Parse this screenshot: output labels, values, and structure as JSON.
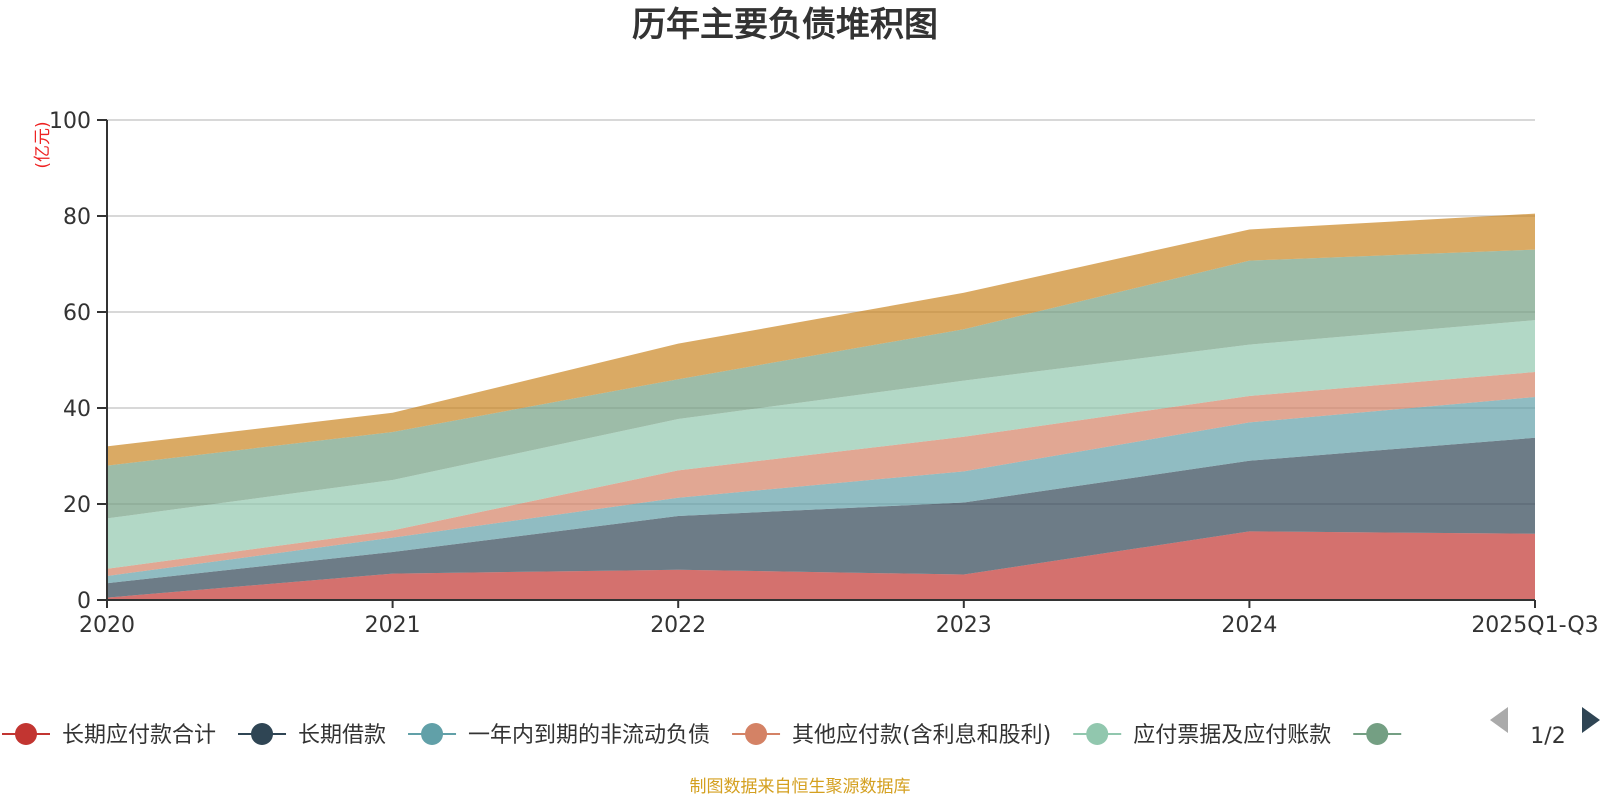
{
  "chart_data": {
    "type": "area",
    "stacked": true,
    "title": "历年主要负债堆积图",
    "ylabel": "(亿元)",
    "xlabel": "",
    "ylim": [
      0,
      100
    ],
    "yticks": [
      0,
      20,
      40,
      60,
      80,
      100
    ],
    "grid": true,
    "categories": [
      "2020",
      "2021",
      "2022",
      "2023",
      "2024",
      "2025Q1-Q3"
    ],
    "series": [
      {
        "name": "长期应付款合计",
        "color": "#c23531",
        "values": [
          0.5,
          5.5,
          6.3,
          5.3,
          14.3,
          13.8
        ]
      },
      {
        "name": "长期借款",
        "color": "#2f4554",
        "values": [
          3.0,
          4.5,
          11.2,
          15.0,
          14.7,
          20.0
        ]
      },
      {
        "name": "一年内到期的非流动负债",
        "color": "#61a0a8",
        "values": [
          1.5,
          3.0,
          3.8,
          6.5,
          8.0,
          8.5
        ]
      },
      {
        "name": "其他应付款(含利息和股利)",
        "color": "#d48265",
        "values": [
          1.5,
          1.5,
          5.7,
          7.2,
          5.5,
          5.2
        ]
      },
      {
        "name": "应付票据及应付账款",
        "color": "#91c7ae",
        "values": [
          10.5,
          10.5,
          10.7,
          11.7,
          10.7,
          10.8
        ]
      },
      {
        "name": "",
        "color": "#749f83",
        "values": [
          11.0,
          10.0,
          8.3,
          10.7,
          17.5,
          14.7
        ]
      },
      {
        "name": "",
        "color": "#ca8622",
        "values": [
          4.0,
          4.0,
          7.4,
          7.6,
          6.5,
          7.5
        ]
      }
    ],
    "legend": {
      "page": "1/2",
      "position": "bottom"
    },
    "source": "制图数据来自恒生聚源数据库"
  }
}
